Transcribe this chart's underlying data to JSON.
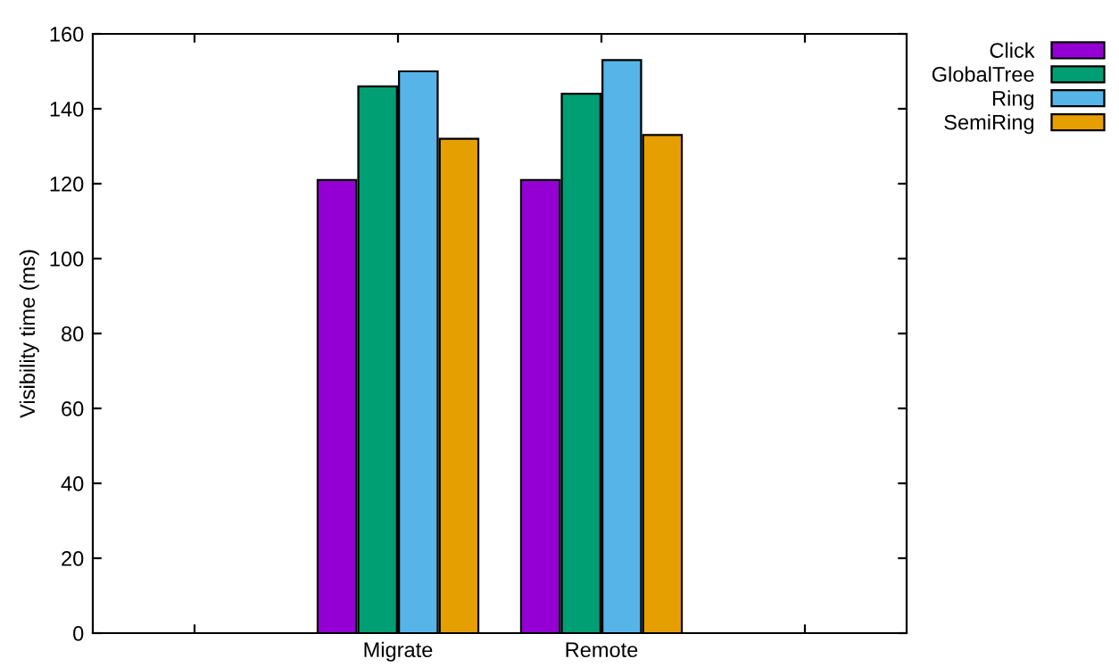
{
  "chart_data": {
    "type": "bar",
    "ylabel": "Visibility time (ms)",
    "categories": [
      null,
      "Migrate",
      "Remote",
      null
    ],
    "series": [
      {
        "name": "Click",
        "color": "#9400d3",
        "values": [
          null,
          121,
          121,
          null
        ]
      },
      {
        "name": "GlobalTree",
        "color": "#009e73",
        "values": [
          null,
          146,
          144,
          null
        ]
      },
      {
        "name": "Ring",
        "color": "#56b4e9",
        "values": [
          null,
          150,
          153,
          null
        ]
      },
      {
        "name": "SemiRing",
        "color": "#e69f00",
        "values": [
          null,
          132,
          133,
          null
        ]
      }
    ],
    "ylim": [
      0,
      160
    ],
    "yticks": [
      0,
      20,
      40,
      60,
      80,
      100,
      120,
      140,
      160
    ],
    "grid": false,
    "legend": "top right"
  }
}
